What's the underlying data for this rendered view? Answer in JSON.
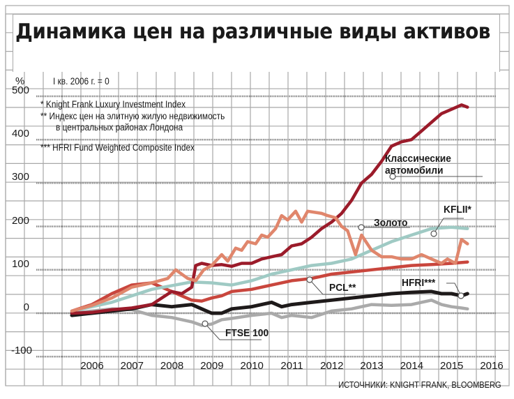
{
  "title": "Динамика цен на различные виды активов",
  "unit_label": "%",
  "base_note": "I кв. 2006 г. = 0",
  "footnotes": [
    "* Knight Frank Luxury Investment Index",
    "** Индекс цен на элитную жилую недвижимость",
    "в центральных районах Лондона",
    "*** HFRI Fund Weighted Composite Index"
  ],
  "source": "ИСТОЧНИКИ: KNIGHT FRANK, BLOOMBERG",
  "colors": {
    "grid": "#a8a8a8",
    "dotted": "#8a8a8a",
    "cars": "#9b1b2a",
    "gold": "#e0866c",
    "kflii": "#9fcac4",
    "pcl": "#c9463d",
    "hfri": "#1e1a1a",
    "ftse": "#aaaaaa"
  },
  "chart_data": {
    "type": "line",
    "title": "Динамика цен на различные виды активов",
    "xlabel": "",
    "ylabel": "%",
    "ylim": [
      -100,
      500
    ],
    "yticks": [
      500,
      400,
      300,
      200,
      100,
      0,
      -100
    ],
    "ytick_labels": [
      "500",
      "400",
      "300",
      "200",
      "100",
      "0",
      "-100"
    ],
    "xticks": [
      "2006",
      "2007",
      "2008",
      "2009",
      "2010",
      "2011",
      "2012",
      "2013",
      "2014",
      "2015",
      "2016"
    ],
    "grid": true,
    "series": [
      {
        "key": "cars",
        "name": "Классические автомобили",
        "label_lines": [
          "Классические",
          "автомобили"
        ],
        "x": [
          0,
          0.5,
          1,
          1.5,
          2,
          2.25,
          2.5,
          2.75,
          3.0,
          3.1,
          3.25,
          3.5,
          3.75,
          4.0,
          4.25,
          4.5,
          4.75,
          5.0,
          5.25,
          5.5,
          5.75,
          6.0,
          6.25,
          6.5,
          6.75,
          7.0,
          7.25,
          7.5,
          7.75,
          8.0,
          8.25,
          8.5,
          8.75,
          9.0,
          9.25,
          9.5,
          9.75,
          9.9
        ],
        "y": [
          0,
          2,
          8,
          12,
          20,
          35,
          50,
          45,
          60,
          110,
          115,
          110,
          112,
          108,
          115,
          115,
          125,
          130,
          135,
          155,
          160,
          175,
          195,
          210,
          230,
          260,
          300,
          320,
          350,
          385,
          395,
          400,
          420,
          440,
          460,
          470,
          480,
          475
        ]
      },
      {
        "key": "gold",
        "name": "Золото",
        "label_lines": [
          "Золото"
        ],
        "x": [
          0,
          0.5,
          1,
          1.5,
          2,
          2.4,
          2.6,
          2.9,
          3.1,
          3.3,
          3.5,
          3.75,
          3.9,
          4.1,
          4.25,
          4.4,
          4.6,
          4.75,
          4.9,
          5.1,
          5.25,
          5.4,
          5.6,
          5.75,
          5.9,
          6.25,
          6.4,
          6.6,
          6.75,
          6.9,
          7.1,
          7.25,
          7.5,
          7.75,
          8.0,
          8.25,
          8.5,
          8.75,
          9.0,
          9.25,
          9.4,
          9.6,
          9.75,
          9.9
        ],
        "y": [
          5,
          18,
          35,
          60,
          70,
          80,
          100,
          80,
          75,
          100,
          110,
          135,
          120,
          150,
          145,
          165,
          160,
          180,
          175,
          195,
          225,
          215,
          235,
          210,
          235,
          230,
          225,
          220,
          200,
          190,
          135,
          180,
          145,
          130,
          130,
          125,
          125,
          135,
          125,
          115,
          125,
          115,
          170,
          160
        ]
      },
      {
        "key": "kflii",
        "name": "KFLII*",
        "label_lines": [
          "KFLII*"
        ],
        "x": [
          0,
          1,
          2,
          3,
          3.5,
          4,
          4.5,
          5,
          5.5,
          6,
          6.5,
          7,
          7.5,
          8,
          8.5,
          9,
          9.5,
          9.9
        ],
        "y": [
          5,
          25,
          55,
          72,
          70,
          65,
          75,
          90,
          100,
          110,
          115,
          125,
          145,
          165,
          180,
          195,
          198,
          195
        ]
      },
      {
        "key": "pcl",
        "name": "PCL**",
        "label_lines": [
          "PCL**"
        ],
        "x": [
          0,
          0.5,
          1,
          1.5,
          2,
          2.5,
          3,
          3.25,
          3.5,
          3.75,
          4,
          4.5,
          5,
          5.5,
          6,
          6.5,
          7,
          7.5,
          8,
          8.5,
          9,
          9.5,
          9.9
        ],
        "y": [
          5,
          20,
          45,
          65,
          70,
          50,
          30,
          28,
          35,
          40,
          50,
          55,
          65,
          75,
          80,
          90,
          95,
          100,
          105,
          110,
          112,
          115,
          118
        ]
      },
      {
        "key": "hfri",
        "name": "HFRI***",
        "label_lines": [
          "HFRI***"
        ],
        "x": [
          0,
          0.5,
          1,
          1.5,
          2,
          2.5,
          3,
          3.25,
          3.5,
          3.75,
          4,
          4.5,
          5,
          5.25,
          5.5,
          6,
          6.5,
          7,
          7.5,
          8,
          8.5,
          9,
          9.25,
          9.5,
          9.75,
          9.9
        ],
        "y": [
          -5,
          0,
          5,
          10,
          20,
          15,
          20,
          10,
          0,
          0,
          10,
          15,
          25,
          15,
          20,
          25,
          30,
          35,
          40,
          45,
          48,
          50,
          45,
          45,
          40,
          45
        ]
      },
      {
        "key": "ftse",
        "name": "FTSE 100",
        "label_lines": [
          "FTSE 100"
        ],
        "x": [
          0,
          1,
          1.5,
          2,
          2.5,
          3,
          3.25,
          3.5,
          3.75,
          4,
          4.5,
          5,
          5.25,
          5.5,
          6,
          6.5,
          7,
          7.5,
          8,
          8.5,
          9,
          9.25,
          9.5,
          9.75,
          9.9
        ],
        "y": [
          0,
          10,
          8,
          -5,
          -10,
          -20,
          -28,
          -25,
          -15,
          -12,
          -5,
          0,
          -10,
          -5,
          -10,
          5,
          10,
          20,
          18,
          20,
          30,
          20,
          15,
          12,
          10
        ]
      }
    ]
  }
}
